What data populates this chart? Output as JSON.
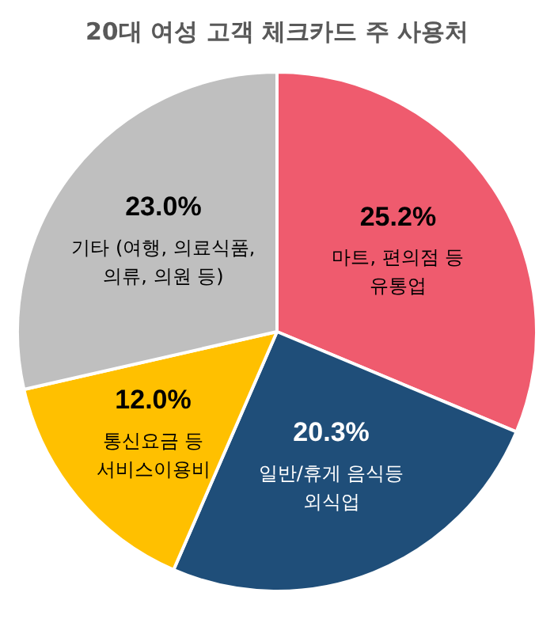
{
  "chart_data": {
    "type": "pie",
    "title": "20대 여성 고객 체크카드 주 사용처",
    "categories": [
      "마트, 편의점 등\n유통업",
      "일반/휴게 음식등\n외식업",
      "통신요금 등\n서비스이용비",
      "기타 (여행, 의료식품,\n의류, 의원 등)"
    ],
    "values": [
      25.2,
      20.3,
      12.0,
      23.0
    ],
    "colors": [
      "#ef5b6e",
      "#1f4e79",
      "#ffc000",
      "#bfbfbf"
    ],
    "value_labels": [
      "25.2%",
      "20.3%",
      "12.0%",
      "23.0%"
    ],
    "legend": false
  }
}
